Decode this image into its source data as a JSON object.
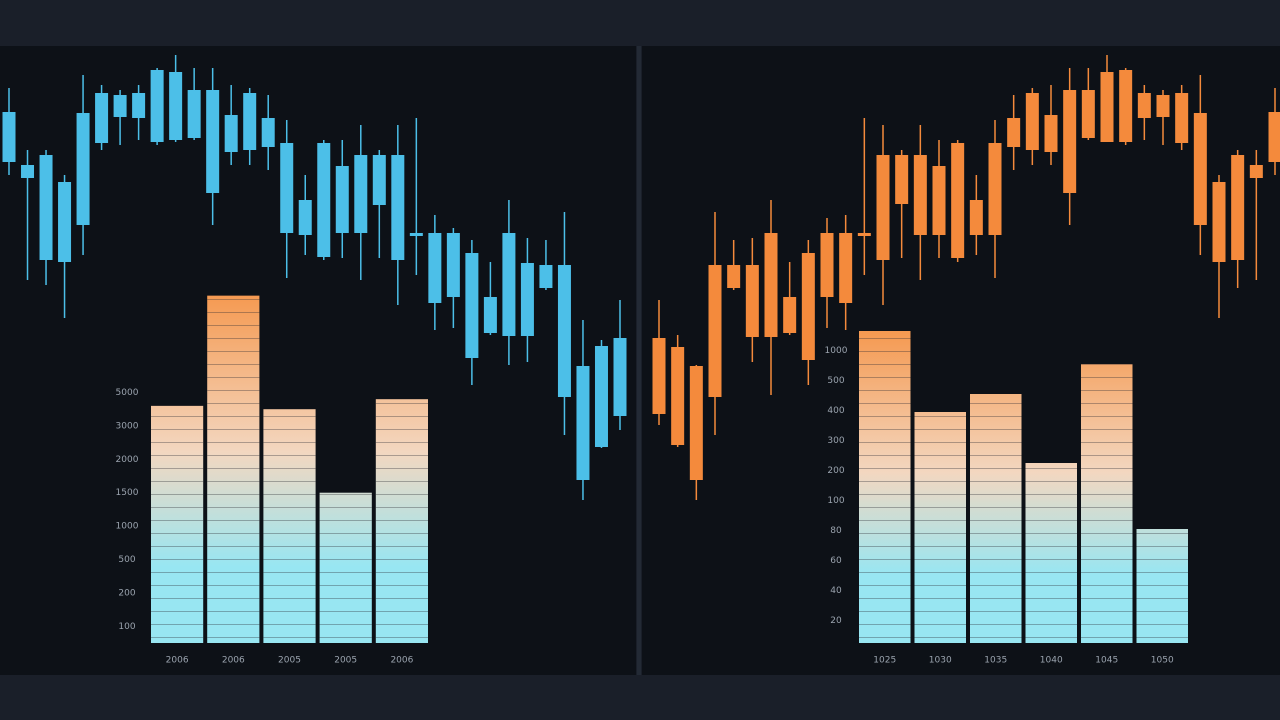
{
  "chart_data": [
    {
      "type": "candlestick",
      "ylim": [
        0,
        94
      ],
      "color": "#4cbfe8",
      "open": [
        71.6,
        68.4,
        52,
        51.6,
        59,
        75.4,
        80.6,
        80.4,
        75.6,
        76,
        76.4,
        65.4,
        73.6,
        74,
        74.6,
        57.4,
        57,
        52.6,
        57.4,
        57.4,
        63,
        52,
        56.8,
        43.4,
        44.6,
        32.4,
        37.4,
        36.8,
        36.8,
        46.4,
        24.6,
        8,
        14.6,
        20.8
      ],
      "close": [
        81.6,
        71,
        73,
        67.6,
        81.4,
        85.4,
        85,
        85.4,
        90,
        89.6,
        86,
        86,
        81,
        85.4,
        80.4,
        75.4,
        64,
        75.4,
        70.8,
        73,
        73,
        73,
        57.4,
        57.4,
        57.4,
        53.4,
        44.6,
        57.4,
        51.4,
        51,
        51,
        30.8,
        34.8,
        36.4
      ],
      "high": [
        86.4,
        74,
        74,
        69,
        89,
        87,
        86,
        87,
        90.4,
        93,
        90.4,
        90.4,
        87,
        86.4,
        85,
        80,
        69,
        76,
        76,
        79,
        74,
        79,
        80.4,
        61,
        58.4,
        56,
        51.6,
        64,
        56.4,
        56,
        61.6,
        40,
        36,
        44
      ],
      "low": [
        69,
        48,
        47,
        40.4,
        53,
        74,
        75,
        76,
        75,
        75.6,
        76,
        59,
        71,
        71,
        70,
        48.4,
        53,
        52,
        52.4,
        48,
        52.4,
        43,
        49,
        38,
        38.4,
        27,
        37,
        31,
        31.6,
        46,
        17,
        4,
        14.4,
        18
      ]
    },
    {
      "type": "candlestick",
      "ylim": [
        0,
        94
      ],
      "color": "#f48a3c",
      "open": [
        21.2,
        15,
        8,
        24.6,
        46.4,
        36.6,
        36.6,
        37.4,
        32,
        44.6,
        43.4,
        56.8,
        52,
        63.2,
        57,
        57,
        52.4,
        57,
        57,
        74.6,
        74,
        73.6,
        65.4,
        76.4,
        75.6,
        75.6,
        80.4,
        80.6,
        75.4,
        59,
        51.6,
        52,
        68.4,
        71.6
      ],
      "close": [
        36.4,
        34.6,
        30.8,
        51,
        51,
        51,
        57.4,
        44.6,
        53.4,
        57.4,
        57.4,
        57.4,
        73,
        73,
        73,
        70.8,
        75.4,
        64,
        75.4,
        80.4,
        85.4,
        81,
        86,
        86,
        89.6,
        90,
        85.4,
        85,
        85.4,
        81.4,
        67.6,
        73,
        71,
        81.6
      ],
      "high": [
        44,
        37,
        31,
        61.6,
        56,
        56.4,
        64,
        51.6,
        56,
        60.4,
        61,
        80.4,
        79,
        74,
        79,
        76,
        76,
        69,
        80,
        85,
        86.4,
        87,
        90.4,
        90.4,
        93,
        90.4,
        87,
        86,
        87,
        89,
        69,
        74,
        74,
        86.4
      ],
      "low": [
        19,
        14.6,
        4,
        17,
        46,
        31.6,
        25,
        37,
        27,
        38.4,
        38,
        49,
        43,
        52.4,
        48,
        52.4,
        51.6,
        53,
        48.4,
        70,
        71,
        71,
        59,
        76,
        75.6,
        75,
        76,
        75,
        74,
        53,
        40.4,
        46.4,
        48,
        69
      ]
    },
    {
      "type": "bar",
      "categories": [
        "2006",
        "2006",
        "2005",
        "2005",
        "2006"
      ],
      "values": [
        7.1,
        10.4,
        7.0,
        4.5,
        7.3
      ],
      "ylim": [
        0,
        11
      ],
      "yticks": [
        {
          "value": 7.5,
          "label": "5000"
        },
        {
          "value": 6.5,
          "label": "3000"
        },
        {
          "value": 5.5,
          "label": "2000"
        },
        {
          "value": 4.5,
          "label": "1500"
        },
        {
          "value": 3.5,
          "label": "1000"
        },
        {
          "value": 2.5,
          "label": "500"
        },
        {
          "value": 1.5,
          "label": "200"
        },
        {
          "value": 0.5,
          "label": "100"
        }
      ],
      "colors": [
        "#f59a52",
        "#f3d7c0",
        "#98e6f2"
      ]
    },
    {
      "type": "bar",
      "categories": [
        "1025",
        "1030",
        "1035",
        "1040",
        "1045",
        "1050"
      ],
      "values": [
        10.4,
        7.7,
        8.3,
        6.0,
        9.3,
        3.8
      ],
      "ylim": [
        0,
        11
      ],
      "yticks": [
        {
          "value": 9.75,
          "label": "1000"
        },
        {
          "value": 8.75,
          "label": "500"
        },
        {
          "value": 7.75,
          "label": "400"
        },
        {
          "value": 6.75,
          "label": "300"
        },
        {
          "value": 5.75,
          "label": "200"
        },
        {
          "value": 4.75,
          "label": "100"
        },
        {
          "value": 3.75,
          "label": "80"
        },
        {
          "value": 2.75,
          "label": "60"
        },
        {
          "value": 1.75,
          "label": "40"
        },
        {
          "value": 0.75,
          "label": "20"
        }
      ],
      "colors": [
        "#f59a52",
        "#f3d7c0",
        "#98e6f2"
      ]
    }
  ]
}
